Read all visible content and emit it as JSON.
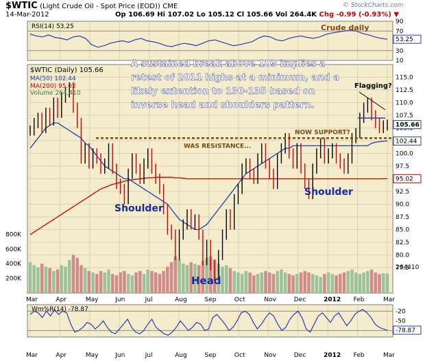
{
  "header": {
    "symbol": "$WTIC",
    "title_rest": "(Light Crude Oil - Spot Price (EOD))",
    "exchange": "CME",
    "date": "14-Mar-2012",
    "open": "Op 106.69",
    "high": "Hi 107.02",
    "low": "Lo 105.12",
    "close": "Cl 105.66",
    "volume": "Vol 264.4K",
    "change": "Chg -0.99 (-0.93%)",
    "change_marker": "▼",
    "brand": "© StockCharts.com"
  },
  "colors": {
    "panel_bg": "#f5eccb",
    "grid": "#d9d2b4",
    "indicator_line": "#2a3bb8",
    "price_up": "#000000",
    "price_down": "#cc0000",
    "ma50": "#1f3fa8",
    "ma200": "#cc0000",
    "volume_up": "#9bc29b",
    "volume_down": "#d08c8c",
    "dashed_level": "#7a4a10",
    "annotation_text": "#1a2a9e",
    "callout_text": "#ffffff",
    "label_badge_price": "#2a3bb8",
    "label_badge_ma200": "#cc0000"
  },
  "chart_data": [
    {
      "type": "line",
      "panel": "rsi",
      "title": "RSI(14) 53.25",
      "series": [
        {
          "name": "RSI(14)",
          "values": [
            64,
            60,
            58,
            62,
            57,
            55,
            52,
            58,
            60,
            55,
            42,
            37,
            40,
            45,
            48,
            50,
            47,
            52,
            55,
            50,
            48,
            45,
            40,
            38,
            42,
            45,
            43,
            40,
            45,
            50,
            52,
            48,
            44,
            40,
            42,
            45,
            48,
            55,
            60,
            58,
            52,
            50,
            55,
            58,
            60,
            57,
            55,
            58,
            63,
            66,
            68,
            70,
            72,
            70,
            65,
            62,
            58,
            55,
            53.25
          ]
        }
      ],
      "ylim": [
        10,
        90
      ],
      "tick_labels": [
        "90",
        "70",
        "50",
        "30",
        "10"
      ],
      "reference_lines": [
        70,
        30
      ],
      "last_value_label": "53.25",
      "annotation": "Crude daily",
      "ylabel": ""
    },
    {
      "type": "line",
      "panel": "price",
      "title": "$WTIC (Daily) 105.66",
      "x_labels": [
        "Mar",
        "Apr",
        "May",
        "Jun",
        "Jul",
        "Aug",
        "Sep",
        "Oct",
        "Nov",
        "Dec",
        "2012",
        "Feb",
        "Mar"
      ],
      "ylim": [
        72.5,
        117.5
      ],
      "y_tick_labels": [
        "115.0",
        "112.5",
        "110.0",
        "107.5",
        "105.0",
        "102.5",
        "100.0",
        "97.5",
        "95.0",
        "92.5",
        "90.0",
        "87.5",
        "85.0",
        "82.5",
        "80.0",
        "77.5"
      ],
      "volume_tick_labels": [
        "800K",
        "600K",
        "400K",
        "200K"
      ],
      "volume_last_label": "264410",
      "series": [
        {
          "name": "$WTIC (Daily) 105.66",
          "values": [
            104.5,
            106,
            107,
            105,
            108,
            106.5,
            110,
            108,
            111,
            112,
            113,
            109,
            106,
            99,
            101,
            98,
            100,
            99,
            97,
            98,
            101,
            97,
            94,
            93,
            91,
            96,
            99,
            97,
            95,
            98,
            100,
            97,
            95,
            93,
            89,
            85,
            84,
            80,
            84,
            86,
            88,
            86,
            87,
            84,
            79,
            82,
            78,
            76,
            80,
            84,
            88,
            86,
            91,
            93,
            97,
            98,
            96,
            95,
            99,
            101,
            98,
            96,
            94,
            99,
            101,
            103,
            100,
            98,
            101,
            97,
            94,
            92,
            97,
            100,
            102,
            99,
            100,
            101,
            99,
            98,
            97,
            99,
            103,
            104,
            107,
            109,
            110,
            107.5,
            106,
            105,
            105.5,
            105.66
          ]
        },
        {
          "name": "MA(50) 102.44",
          "values": [
            101,
            102,
            103,
            104,
            105,
            105.5,
            106,
            106,
            105.5,
            105,
            104.5,
            104,
            103.5,
            103,
            102,
            101.5,
            100.5,
            99.5,
            98.5,
            97.5,
            97,
            96.5,
            96,
            95.5,
            95,
            95,
            94.5,
            94,
            93.5,
            93,
            92.5,
            92,
            91.5,
            91,
            90.5,
            90,
            89,
            88,
            87,
            86.5,
            86,
            85.5,
            85,
            85,
            85.5,
            86,
            87,
            88,
            89,
            90,
            91,
            92,
            93,
            94,
            95,
            96,
            96.5,
            97,
            97.5,
            98,
            98.5,
            99,
            99.5,
            100,
            100.5,
            101,
            101,
            101.5,
            101.5,
            101.5,
            101.5,
            101.5,
            101.5,
            101.5,
            101.5,
            101.5,
            101.5,
            101.5,
            101.5,
            101.5,
            101.5,
            101.5,
            101.5,
            101.5,
            101.5,
            101.5,
            101.5,
            102,
            102.2,
            102.3,
            102.4,
            102.44
          ]
        },
        {
          "name": "MA(200) 95.02",
          "values": [
            84,
            84.5,
            85,
            85.5,
            86,
            86.5,
            87,
            87.5,
            88,
            88.5,
            89,
            89.5,
            90,
            90.5,
            91,
            91.5,
            92,
            92.5,
            93,
            93.3,
            93.6,
            93.9,
            94.1,
            94.3,
            94.5,
            94.7,
            94.8,
            94.9,
            95,
            95.1,
            95.2,
            95.2,
            95.3,
            95.3,
            95.3,
            95.3,
            95.3,
            95.2,
            95.2,
            95.1,
            95,
            95,
            95,
            95,
            95,
            95,
            95,
            95,
            95,
            95,
            95,
            95,
            95,
            95,
            95,
            95,
            95,
            95,
            95,
            95,
            95,
            95,
            95,
            95,
            95,
            95,
            95,
            95,
            95,
            95,
            95,
            95,
            95,
            95,
            95,
            95,
            95,
            95,
            95,
            95,
            95,
            95,
            95,
            95,
            95,
            95,
            95,
            95,
            95,
            95,
            95.02,
            95.02
          ]
        },
        {
          "name": "Volume 264,410",
          "values": [
            420,
            380,
            350,
            400,
            360,
            340,
            300,
            320,
            380,
            360,
            450,
            520,
            480,
            380,
            340,
            300,
            280,
            260,
            300,
            280,
            320,
            260,
            240,
            280,
            300,
            260,
            240,
            280,
            300,
            260,
            320,
            300,
            280,
            260,
            300,
            360,
            420,
            500,
            460,
            400,
            380,
            420,
            400,
            380,
            440,
            480,
            500,
            460,
            400,
            360,
            380,
            340,
            300,
            280,
            260,
            300,
            280,
            240,
            260,
            280,
            300,
            280,
            260,
            300,
            320,
            280,
            260,
            240,
            260,
            280,
            300,
            280,
            260,
            240,
            220,
            260,
            280,
            260,
            240,
            260,
            280,
            300,
            320,
            280,
            260,
            280,
            300,
            320,
            280,
            260,
            270,
            264
          ]
        }
      ],
      "levels": [
        {
          "label": "WAS RESISTANCE...",
          "value": 103
        },
        {
          "label": "NOW SUPPORT?",
          "value": 103
        }
      ],
      "price_badges": [
        {
          "label": "105.66",
          "value": 105.66
        },
        {
          "label": "102.44",
          "value": 102.44
        },
        {
          "label": "95.02",
          "value": 95.02
        }
      ],
      "annotations": [
        {
          "text": "A sustained break above 103 implies a",
          "kind": "callout"
        },
        {
          "text": "retest of 2011 highs at a minimum, and a",
          "kind": "callout"
        },
        {
          "text": "likely extention to 130-135 based on",
          "kind": "callout"
        },
        {
          "text": "inverse head and shoulders pattern.",
          "kind": "callout"
        },
        {
          "text": "Flagging?",
          "kind": "note"
        },
        {
          "text": "Shoulder",
          "kind": "pattern"
        },
        {
          "text": "Head",
          "kind": "pattern"
        },
        {
          "text": "Shoulder",
          "kind": "pattern"
        }
      ]
    },
    {
      "type": "line",
      "panel": "williams",
      "title": "Wm%R(14) -78.87",
      "series": [
        {
          "name": "Wm%R(14)",
          "values": [
            -30,
            -20,
            -25,
            -40,
            -20,
            -35,
            -15,
            -30,
            -20,
            -25,
            -60,
            -85,
            -80,
            -70,
            -55,
            -60,
            -75,
            -65,
            -50,
            -70,
            -85,
            -90,
            -75,
            -60,
            -45,
            -70,
            -85,
            -90,
            -80,
            -60,
            -45,
            -70,
            -80,
            -90,
            -95,
            -85,
            -70,
            -50,
            -65,
            -80,
            -70,
            -55,
            -60,
            -80,
            -75,
            -40,
            -30,
            -45,
            -60,
            -80,
            -70,
            -50,
            -25,
            -20,
            -30,
            -55,
            -75,
            -60,
            -40,
            -25,
            -35,
            -60,
            -80,
            -70,
            -45,
            -30,
            -20,
            -40,
            -75,
            -85,
            -60,
            -35,
            -25,
            -40,
            -55,
            -35,
            -25,
            -45,
            -65,
            -50,
            -30,
            -20,
            -15,
            -25,
            -40,
            -60,
            -70,
            -75,
            -78.87
          ]
        }
      ],
      "ylim": [
        -100,
        0
      ],
      "tick_labels": [
        "-20",
        "-50",
        "-80"
      ],
      "reference_lines": [
        -20,
        -80
      ],
      "last_value_label": "-78.87",
      "x_labels": [
        "Mar",
        "Apr",
        "May",
        "Jun",
        "Jul",
        "Aug",
        "Sep",
        "Oct",
        "Nov",
        "Dec",
        "2012",
        "Feb",
        "Mar"
      ],
      "ylabel": ""
    }
  ]
}
